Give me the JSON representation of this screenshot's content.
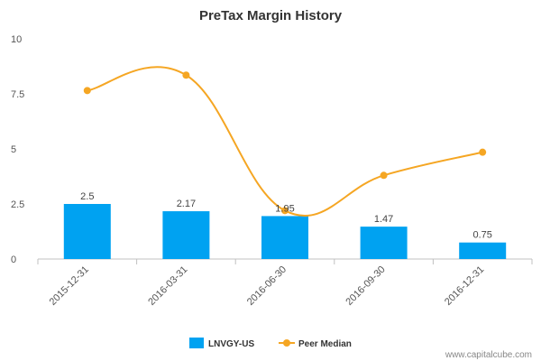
{
  "chart_data": {
    "type": "bar",
    "title": "PreTax Margin History",
    "categories": [
      "2015-12-31",
      "2016-03-31",
      "2016-06-30",
      "2016-09-30",
      "2016-12-31"
    ],
    "ylim": [
      0,
      10
    ],
    "yticks": [
      "0",
      "2.5",
      "5",
      "7.5",
      "10"
    ],
    "grid": false,
    "legend_position": "bottom",
    "series": [
      {
        "name": "LNVGY-US",
        "kind": "bar",
        "color": "#00a2f1",
        "values": [
          2.5,
          2.17,
          1.95,
          1.47,
          0.75
        ],
        "labels": [
          "2.5",
          "2.17",
          "1.95",
          "1.47",
          "0.75"
        ]
      },
      {
        "name": "Peer Median",
        "kind": "line",
        "color": "#f5a623",
        "values": [
          7.65,
          8.35,
          2.2,
          3.8,
          4.85
        ]
      }
    ]
  },
  "watermark": "www.capitalcube.com"
}
